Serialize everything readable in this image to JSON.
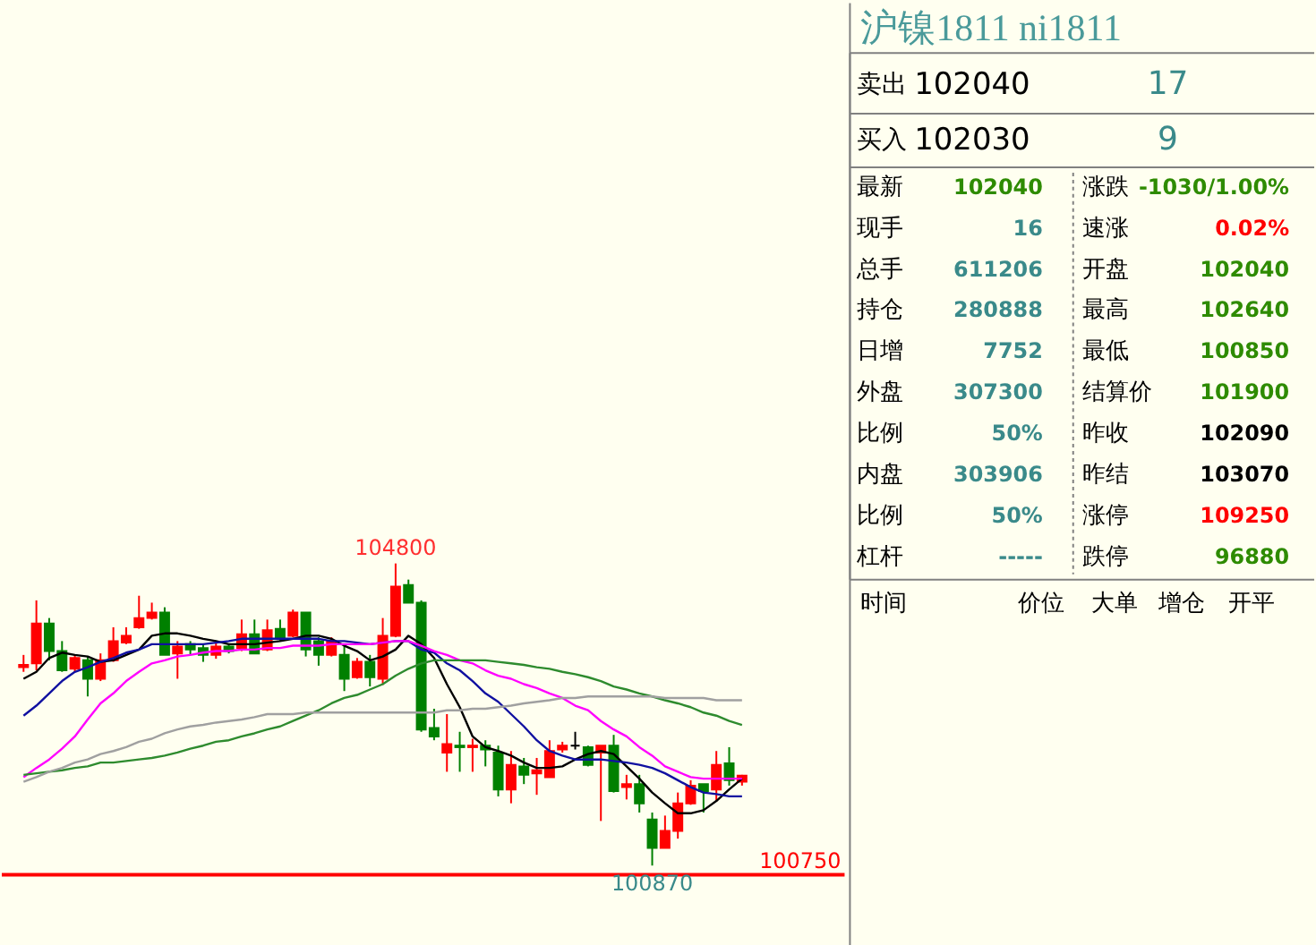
{
  "chart_data": [
    {
      "type": "candlestick",
      "tick_labels": false,
      "categories": [
        null,
        null,
        null,
        null,
        null,
        null,
        null,
        null,
        null,
        null,
        null,
        null,
        null,
        null,
        null,
        null,
        null,
        null,
        null,
        null,
        null,
        null,
        null,
        null,
        null,
        null,
        null,
        null,
        null,
        null,
        null,
        null,
        null,
        null,
        null,
        null,
        null,
        null,
        null,
        null,
        null,
        null,
        null,
        null,
        null,
        null,
        null,
        null,
        null,
        null,
        null,
        null,
        null,
        null,
        null,
        null,
        null
      ],
      "ohlc": [
        [
          103450,
          103610,
          103390,
          103480
        ],
        [
          103500,
          104320,
          103410,
          104020
        ],
        [
          104020,
          104090,
          103540,
          103660
        ],
        [
          103660,
          103790,
          103390,
          103410
        ],
        [
          103430,
          103610,
          103390,
          103570
        ],
        [
          103540,
          103590,
          103070,
          103300
        ],
        [
          103300,
          103630,
          103270,
          103540
        ],
        [
          103540,
          103970,
          103520,
          103790
        ],
        [
          103770,
          103970,
          103750,
          103860
        ],
        [
          103970,
          104380,
          103950,
          104090
        ],
        [
          104090,
          104290,
          104070,
          104160
        ],
        [
          104160,
          104230,
          103610,
          103610
        ],
        [
          103630,
          103790,
          103300,
          103720
        ],
        [
          103750,
          103790,
          103610,
          103680
        ],
        [
          103700,
          103750,
          103520,
          103610
        ],
        [
          103610,
          103770,
          103560,
          103720
        ],
        [
          103720,
          103750,
          103630,
          103660
        ],
        [
          103700,
          104070,
          103660,
          103880
        ],
        [
          103880,
          104070,
          103630,
          103630
        ],
        [
          103680,
          104070,
          103660,
          103930
        ],
        [
          103950,
          104070,
          103790,
          103840
        ],
        [
          103860,
          104200,
          103840,
          104160
        ],
        [
          104160,
          104160,
          103590,
          103680
        ],
        [
          103790,
          103840,
          103470,
          103610
        ],
        [
          103610,
          103840,
          103590,
          103790
        ],
        [
          103610,
          103750,
          103140,
          103300
        ],
        [
          103320,
          103570,
          103300,
          103520
        ],
        [
          103520,
          103610,
          103200,
          103320
        ],
        [
          103300,
          104090,
          103220,
          103860
        ],
        [
          103860,
          104800,
          103840,
          104500
        ],
        [
          104520,
          104590,
          104290,
          104290
        ],
        [
          104290,
          104320,
          102610,
          102640
        ],
        [
          102660,
          102910,
          102500,
          102550
        ],
        [
          102340,
          102840,
          102090,
          102450
        ],
        [
          102430,
          102610,
          102090,
          102410
        ],
        [
          102410,
          102520,
          102090,
          102430
        ],
        [
          102430,
          102500,
          102160,
          102380
        ],
        [
          102340,
          102430,
          101770,
          101860
        ],
        [
          101860,
          102360,
          101680,
          102180
        ],
        [
          102160,
          102270,
          101930,
          102050
        ],
        [
          102070,
          102270,
          101790,
          102110
        ],
        [
          102020,
          102500,
          102020,
          102360
        ],
        [
          102380,
          102480,
          102340,
          102430
        ],
        [
          102430,
          102610,
          102380,
          102430
        ],
        [
          102410,
          102430,
          102160,
          102180
        ],
        [
          102340,
          102430,
          101450,
          102430
        ],
        [
          102430,
          102570,
          101820,
          101840
        ],
        [
          101890,
          102050,
          101730,
          101930
        ],
        [
          101930,
          102050,
          101560,
          101680
        ],
        [
          101470,
          101560,
          100870,
          101100
        ],
        [
          101100,
          101520,
          101100,
          101320
        ],
        [
          101320,
          101820,
          101220,
          101680
        ],
        [
          101680,
          101980,
          101660,
          101910
        ],
        [
          101930,
          101930,
          101560,
          101840
        ],
        [
          101860,
          102360,
          101700,
          102180
        ],
        [
          102200,
          102410,
          101910,
          101980
        ],
        [
          101960,
          102050,
          101910,
          102040
        ]
      ],
      "colors": [
        "#ff0000",
        "#ff0000",
        "#008000",
        "#008000",
        "#ff0000",
        "#008000",
        "#ff0000",
        "#ff0000",
        "#ff0000",
        "#ff0000",
        "#ff0000",
        "#008000",
        "#ff0000",
        "#008000",
        "#008000",
        "#ff0000",
        "#008000",
        "#ff0000",
        "#008000",
        "#ff0000",
        "#008000",
        "#ff0000",
        "#008000",
        "#008000",
        "#ff0000",
        "#008000",
        "#ff0000",
        "#008000",
        "#ff0000",
        "#ff0000",
        "#008000",
        "#008000",
        "#008000",
        "#ff0000",
        "#008000",
        "#ff0000",
        "#008000",
        "#008000",
        "#ff0000",
        "#008000",
        "#ff0000",
        "#ff0000",
        "#ff0000",
        "#000000",
        "#008000",
        "#ff0000",
        "#008000",
        "#ff0000",
        "#008000",
        "#008000",
        "#ff0000",
        "#ff0000",
        "#ff0000",
        "#008000",
        "#ff0000",
        "#008000",
        "#ff0000"
      ],
      "series": [
        {
          "type": "line",
          "color": "#000000",
          "values": [
            103300,
            103390,
            103570,
            103640,
            103610,
            103590,
            103520,
            103540,
            103610,
            103680,
            103860,
            103890,
            103890,
            103860,
            103820,
            103790,
            103750,
            103750,
            103750,
            103770,
            103790,
            103820,
            103860,
            103860,
            103820,
            103730,
            103660,
            103540,
            103590,
            103680,
            103860,
            103750,
            103570,
            103230,
            102930,
            102550,
            102410,
            102360,
            102300,
            102210,
            102140,
            102140,
            102160,
            102250,
            102320,
            102360,
            102320,
            102160,
            102000,
            101820,
            101680,
            101550,
            101550,
            101590,
            101710,
            101860,
            102000
          ]
        },
        {
          "type": "line",
          "color": "#1010a0",
          "values": [
            102820,
            102950,
            103110,
            103270,
            103390,
            103450,
            103520,
            103570,
            103640,
            103680,
            103750,
            103750,
            103750,
            103750,
            103750,
            103770,
            103790,
            103820,
            103820,
            103820,
            103820,
            103820,
            103820,
            103820,
            103790,
            103790,
            103770,
            103750,
            103770,
            103790,
            103790,
            103680,
            103640,
            103500,
            103410,
            103270,
            103110,
            103000,
            102840,
            102680,
            102500,
            102360,
            102300,
            102250,
            102250,
            102250,
            102230,
            102210,
            102180,
            102140,
            102070,
            101980,
            101890,
            101820,
            101800,
            101770,
            101770
          ]
        },
        {
          "type": "line",
          "color": "#ff00ff",
          "values": [
            102020,
            102140,
            102250,
            102390,
            102550,
            102770,
            102980,
            103110,
            103270,
            103390,
            103500,
            103540,
            103590,
            103610,
            103640,
            103660,
            103660,
            103680,
            103680,
            103700,
            103700,
            103730,
            103730,
            103730,
            103750,
            103750,
            103750,
            103750,
            103770,
            103790,
            103790,
            103730,
            103660,
            103610,
            103540,
            103500,
            103410,
            103340,
            103300,
            103230,
            103180,
            103110,
            103050,
            102950,
            102890,
            102750,
            102640,
            102550,
            102410,
            102300,
            102160,
            102090,
            102020,
            102000,
            102000,
            102000,
            102000
          ]
        },
        {
          "type": "line",
          "color": "#2e8b2e",
          "values": [
            102050,
            102070,
            102090,
            102110,
            102140,
            102160,
            102210,
            102210,
            102230,
            102250,
            102270,
            102300,
            102340,
            102390,
            102430,
            102480,
            102500,
            102550,
            102590,
            102640,
            102680,
            102750,
            102820,
            102890,
            102980,
            103050,
            103090,
            103160,
            103230,
            103340,
            103430,
            103500,
            103540,
            103540,
            103540,
            103540,
            103540,
            103520,
            103500,
            103480,
            103450,
            103430,
            103390,
            103360,
            103320,
            103270,
            103200,
            103160,
            103110,
            103070,
            103020,
            102980,
            102930,
            102860,
            102820,
            102750,
            102700
          ]
        },
        {
          "type": "line",
          "color": "#a0a0a0",
          "values": [
            101960,
            102020,
            102090,
            102140,
            102210,
            102250,
            102320,
            102360,
            102410,
            102480,
            102520,
            102590,
            102640,
            102680,
            102700,
            102730,
            102750,
            102770,
            102800,
            102840,
            102840,
            102840,
            102860,
            102860,
            102860,
            102860,
            102860,
            102860,
            102860,
            102860,
            102860,
            102860,
            102860,
            102890,
            102890,
            102910,
            102910,
            102930,
            102950,
            102980,
            103000,
            103020,
            103050,
            103050,
            103070,
            103070,
            103070,
            103070,
            103070,
            103070,
            103050,
            103050,
            103050,
            103050,
            103020,
            103020,
            103020
          ]
        }
      ],
      "ref_lines": [
        {
          "axis": "y",
          "value": 100750,
          "label": "100750",
          "color": "#ff0000"
        }
      ],
      "annotations": [
        {
          "text": "104800",
          "y": 104800
        },
        {
          "text": "100870",
          "y": 100870
        }
      ]
    },
    {
      "type": "other",
      "title": "沪镍1811 ni1811",
      "annotations": [
        "卖出",
        "102040",
        "17",
        "买入",
        "102030",
        "9",
        "最新",
        "102040",
        "涨跌",
        "-1030/1.00%",
        "现手",
        "16",
        "速涨",
        "0.02%",
        "总手",
        "611206",
        "开盘",
        "102040",
        "持仓",
        "280888",
        "最高",
        "102640",
        "日增",
        "7752",
        "最低",
        "100850",
        "外盘",
        "307300",
        "结算价",
        "101900",
        "比例",
        "50%",
        "昨收",
        "102090",
        "内盘",
        "303906",
        "昨结",
        "103070",
        "比例",
        "50%",
        "涨停",
        "109250",
        "杠杆",
        "-----",
        "跌停",
        "96880",
        "时间",
        "价位",
        "大单",
        "增仓",
        "开平"
      ]
    }
  ]
}
